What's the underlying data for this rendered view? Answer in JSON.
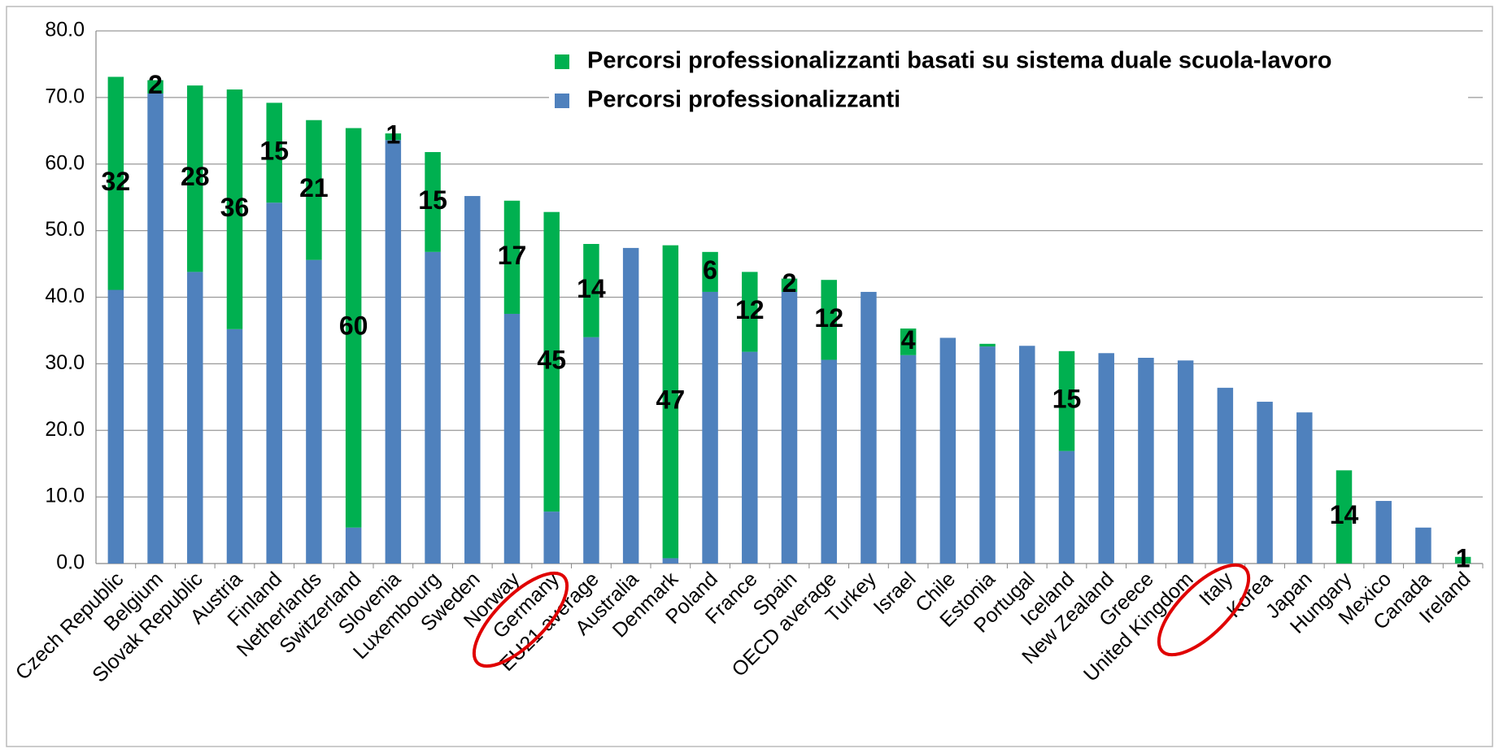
{
  "chart_data": {
    "type": "stacked_bar",
    "categories": [
      "Czech Republic",
      "Belgium",
      "Slovak Republic",
      "Austria",
      "Finland",
      "Netherlands",
      "Switzerland",
      "Slovenia",
      "Luxembourg",
      "Sweden",
      "Norway",
      "Germany",
      "EU21 average",
      "Australia",
      "Denmark",
      "Poland",
      "France",
      "Spain",
      "OECD average",
      "Turkey",
      "Israel",
      "Chile",
      "Estonia",
      "Portugal",
      "Iceland",
      "New Zealand",
      "Greece",
      "United Kingdom",
      "Italy",
      "Korea",
      "Japan",
      "Hungary",
      "Mexico",
      "Canada",
      "Ireland"
    ],
    "series": [
      {
        "name": "Percorsi professionalizzanti",
        "color": "#4f81bd",
        "values": [
          41.1,
          70.6,
          43.8,
          35.2,
          54.2,
          45.6,
          5.4,
          63.6,
          46.8,
          55.2,
          37.5,
          7.8,
          34.0,
          47.4,
          0.8,
          40.8,
          31.8,
          40.8,
          30.6,
          40.8,
          31.3,
          33.9,
          32.6,
          32.7,
          16.9,
          31.6,
          30.9,
          30.5,
          26.4,
          24.3,
          22.7,
          null,
          9.4,
          5.4,
          null
        ]
      },
      {
        "name": "Percorsi professionalizzanti basati su sistema duale scuola-lavoro",
        "color": "#00b050",
        "values": [
          32,
          2,
          28,
          36,
          15,
          21,
          60,
          1,
          15,
          null,
          17,
          45,
          14,
          null,
          47,
          6,
          12,
          2,
          12,
          null,
          4,
          null,
          0.4,
          null,
          15,
          null,
          null,
          null,
          null,
          null,
          null,
          14,
          null,
          null,
          1
        ],
        "value_labels": [
          "32",
          "2",
          "28",
          "36",
          "15",
          "21",
          "60",
          "1",
          "15",
          null,
          "17",
          "45",
          "14",
          null,
          "47",
          "6",
          "12",
          "2",
          "12",
          null,
          "4",
          null,
          null,
          null,
          "15",
          null,
          null,
          null,
          null,
          null,
          null,
          "14",
          null,
          null,
          "1"
        ]
      }
    ],
    "ylim": [
      0,
      80
    ],
    "yticks": [
      {
        "value": 0,
        "label": "0.0"
      },
      {
        "value": 10,
        "label": "10.0"
      },
      {
        "value": 20,
        "label": "20.0"
      },
      {
        "value": 30,
        "label": "30.0"
      },
      {
        "value": 40,
        "label": "40.0"
      },
      {
        "value": 50,
        "label": "50.0"
      },
      {
        "value": 60,
        "label": "60.0"
      },
      {
        "value": 70,
        "label": "70.0"
      },
      {
        "value": 80,
        "label": "80.0"
      }
    ],
    "grid": true,
    "legend": "top-right"
  }
}
